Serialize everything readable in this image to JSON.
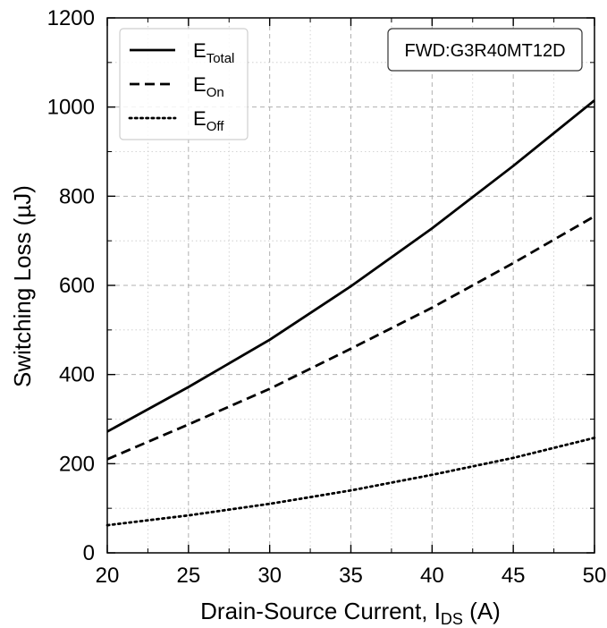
{
  "chart_data": {
    "type": "line",
    "xlabel": {
      "main": "Drain-Source Current, I",
      "sub": "DS",
      "suffix": " (A)"
    },
    "ylabel": "Switching Loss (µJ)",
    "xlim": [
      20,
      50
    ],
    "ylim": [
      0,
      1200
    ],
    "xticks": [
      "20",
      "25",
      "30",
      "35",
      "40",
      "45",
      "50"
    ],
    "yticks": [
      "0",
      "200",
      "400",
      "600",
      "800",
      "1000",
      "1200"
    ],
    "grid": true,
    "legend_position": "top-left",
    "annotation": "FWD:G3R40MT12D",
    "series": [
      {
        "name": "E",
        "sub": "Total",
        "dash": "solid",
        "x": [
          20,
          25,
          30,
          35,
          40,
          45,
          50
        ],
        "y": [
          272,
          372,
          478,
          598,
          728,
          868,
          1015
        ]
      },
      {
        "name": "E",
        "sub": "On",
        "dash": "dashed",
        "x": [
          20,
          25,
          30,
          35,
          40,
          45,
          50
        ],
        "y": [
          210,
          288,
          368,
          458,
          550,
          650,
          755
        ]
      },
      {
        "name": "E",
        "sub": "Off",
        "dash": "dotted",
        "x": [
          20,
          25,
          30,
          35,
          40,
          45,
          50
        ],
        "y": [
          62,
          84,
          110,
          140,
          175,
          213,
          258
        ]
      }
    ]
  }
}
